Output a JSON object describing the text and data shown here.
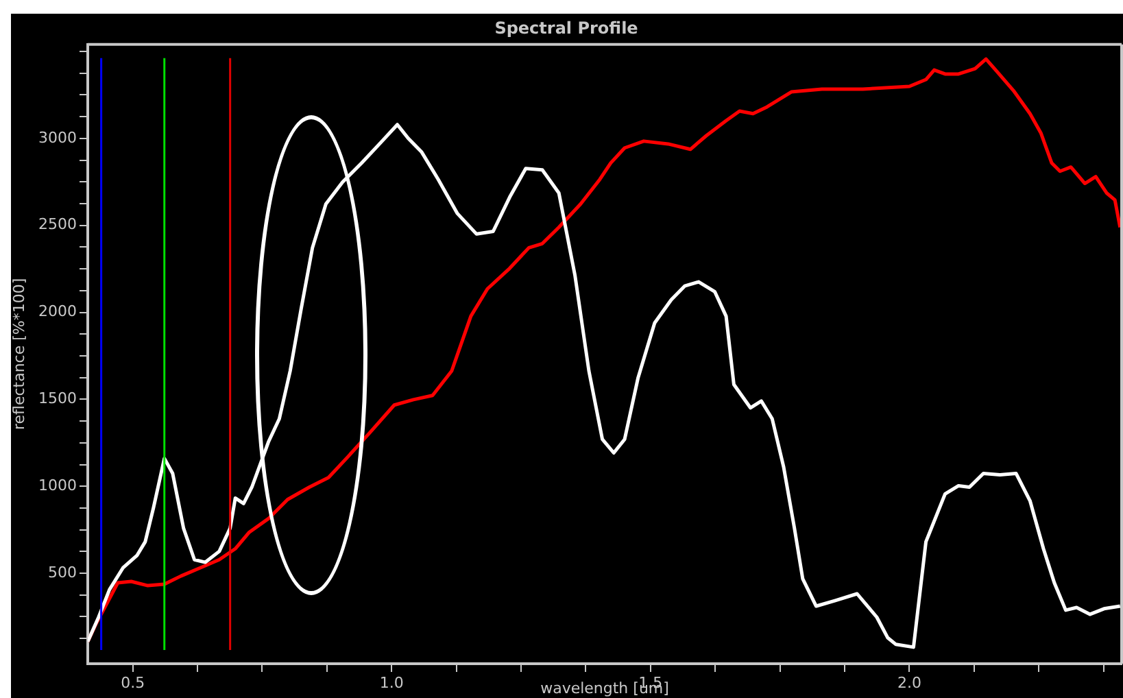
{
  "chart_data": {
    "type": "line",
    "title": "Spectral Profile",
    "xlabel": "wavelength [um]",
    "ylabel": "reflectance [%*100]",
    "xlim": [
      0.413,
      2.41
    ],
    "ylim": [
      -20,
      3540
    ],
    "xticks": [
      0.5,
      {
        "value": 0.625,
        "label": null
      },
      {
        "value": 0.75,
        "label": null
      },
      {
        "value": 0.875,
        "label": null
      },
      {
        "value": 1,
        "label": "1.0"
      },
      {
        "value": 1.125,
        "label": null
      },
      {
        "value": 1.25,
        "label": null
      },
      {
        "value": 1.375,
        "label": null
      },
      1.5,
      {
        "value": 1.625,
        "label": null
      },
      {
        "value": 1.75,
        "label": null
      },
      {
        "value": 1.875,
        "label": null
      },
      {
        "value": 2,
        "label": "2.0"
      },
      {
        "value": 2.125,
        "label": null
      },
      {
        "value": 2.25,
        "label": null
      },
      {
        "value": 2.375,
        "label": null
      }
    ],
    "yticks": [
      {
        "value": 125,
        "label": null
      },
      {
        "value": 250,
        "label": null
      },
      {
        "value": 375,
        "label": null
      },
      500,
      {
        "value": 625,
        "label": null
      },
      {
        "value": 750,
        "label": null
      },
      {
        "value": 875,
        "label": null
      },
      1000,
      {
        "value": 1125,
        "label": null
      },
      {
        "value": 1250,
        "label": null
      },
      {
        "value": 1375,
        "label": null
      },
      1500,
      {
        "value": 1625,
        "label": null
      },
      {
        "value": 1750,
        "label": null
      },
      {
        "value": 1875,
        "label": null
      },
      2000,
      {
        "value": 2125,
        "label": null
      },
      {
        "value": 2250,
        "label": null
      },
      {
        "value": 2375,
        "label": null
      },
      2500,
      {
        "value": 2625,
        "label": null
      },
      {
        "value": 2750,
        "label": null
      },
      {
        "value": 2875,
        "label": null
      },
      3000,
      {
        "value": 3125,
        "label": null
      },
      {
        "value": 3250,
        "label": null
      },
      {
        "value": 3375,
        "label": null
      },
      {
        "value": 3500,
        "label": null
      }
    ],
    "grid": false,
    "legend": false,
    "marker": "none",
    "line_style": "solid",
    "ref_lines": [
      {
        "axis": "x",
        "value": 0.439,
        "color": "#0000ff"
      },
      {
        "axis": "x",
        "value": 0.561,
        "color": "#00e000"
      },
      {
        "axis": "x",
        "value": 0.688,
        "color": "#e00000"
      }
    ],
    "series": [
      {
        "color": "#ffffff",
        "x": [
          0.413,
          0.434,
          0.455,
          0.481,
          0.508,
          0.524,
          0.54,
          0.561,
          0.577,
          0.598,
          0.619,
          0.64,
          0.667,
          0.688,
          0.698,
          0.714,
          0.73,
          0.762,
          0.783,
          0.804,
          0.825,
          0.847,
          0.873,
          0.905,
          0.942,
          0.979,
          1.011,
          1.032,
          1.058,
          1.09,
          1.127,
          1.164,
          1.196,
          1.228,
          1.259,
          1.291,
          1.323,
          1.354,
          1.381,
          1.407,
          1.429,
          1.45,
          1.476,
          1.508,
          1.54,
          1.566,
          1.593,
          1.624,
          1.646,
          1.661,
          1.693,
          1.714,
          1.735,
          1.757,
          1.778,
          1.794,
          1.82,
          1.857,
          1.899,
          1.937,
          1.958,
          1.974,
          2.008,
          2.032,
          2.069,
          2.095,
          2.116,
          2.143,
          2.175,
          2.206,
          2.233,
          2.259,
          2.28,
          2.302,
          2.323,
          2.349,
          2.376,
          2.407
        ],
        "values": [
          107,
          248,
          406,
          531,
          602,
          681,
          877,
          1160,
          1074,
          759,
          578,
          563,
          626,
          759,
          932,
          901,
          995,
          1255,
          1388,
          1663,
          2017,
          2371,
          2623,
          2748,
          2858,
          2976,
          3079,
          3000,
          2921,
          2764,
          2568,
          2450,
          2465,
          2662,
          2827,
          2819,
          2686,
          2214,
          1663,
          1270,
          1192,
          1270,
          1624,
          1939,
          2072,
          2151,
          2175,
          2119,
          1978,
          1585,
          1451,
          1490,
          1388,
          1113,
          759,
          468,
          311,
          343,
          382,
          248,
          130,
          91,
          75,
          681,
          956,
          1003,
          995,
          1074,
          1066,
          1074,
          917,
          641,
          445,
          288,
          303,
          264,
          296,
          311
        ]
      },
      {
        "color": "#ff0000",
        "x": [
          0.413,
          0.429,
          0.45,
          0.471,
          0.497,
          0.529,
          0.561,
          0.593,
          0.63,
          0.667,
          0.698,
          0.725,
          0.762,
          0.799,
          0.841,
          0.878,
          0.915,
          0.958,
          1.005,
          1.042,
          1.079,
          1.116,
          1.153,
          1.185,
          1.228,
          1.265,
          1.291,
          1.323,
          1.365,
          1.402,
          1.423,
          1.45,
          1.487,
          1.534,
          1.577,
          1.608,
          1.646,
          1.672,
          1.698,
          1.725,
          1.772,
          1.831,
          1.91,
          2.0,
          2.032,
          2.048,
          2.069,
          2.095,
          2.127,
          2.148,
          2.169,
          2.201,
          2.233,
          2.254,
          2.275,
          2.291,
          2.312,
          2.339,
          2.36,
          2.381,
          2.397,
          2.407
        ],
        "values": [
          107,
          209,
          327,
          445,
          453,
          429,
          437,
          484,
          531,
          578,
          641,
          736,
          814,
          924,
          995,
          1050,
          1168,
          1309,
          1467,
          1498,
          1522,
          1663,
          1978,
          2135,
          2253,
          2371,
          2395,
          2489,
          2623,
          2764,
          2858,
          2945,
          2984,
          2968,
          2937,
          3016,
          3102,
          3157,
          3142,
          3181,
          3267,
          3283,
          3283,
          3299,
          3338,
          3393,
          3370,
          3370,
          3401,
          3456,
          3385,
          3275,
          3142,
          3031,
          2858,
          2811,
          2835,
          2741,
          2780,
          2686,
          2646,
          2489
        ]
      }
    ]
  }
}
